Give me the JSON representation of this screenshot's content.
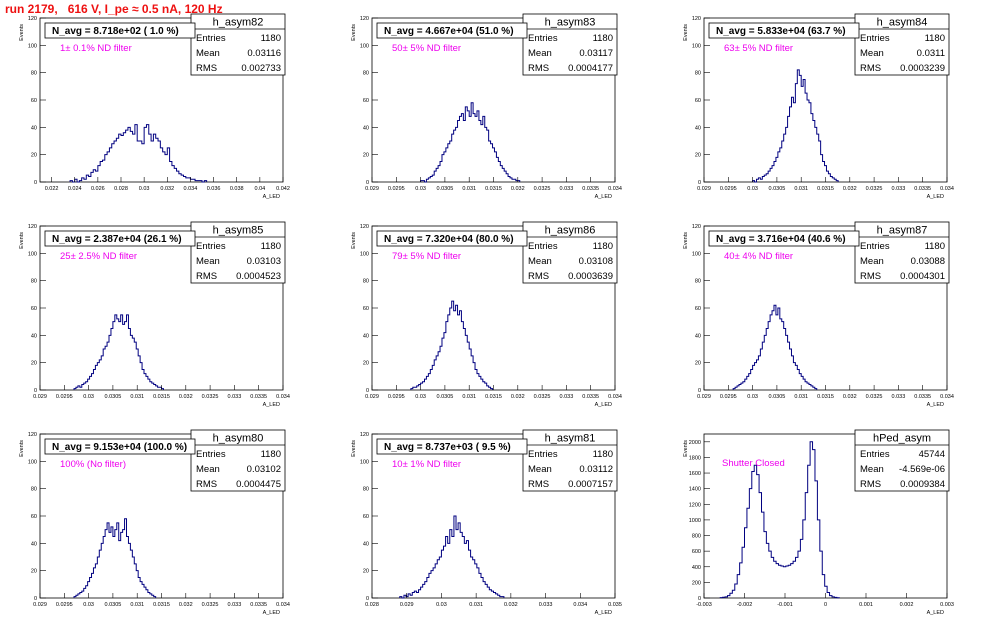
{
  "page": {
    "title": "run 2179,   616 V, I_pe ≈ 0.5 nA, 120 Hz"
  },
  "colors": {
    "title": "#ee1111",
    "annotation": "#ee00ee",
    "histogram": "#000080",
    "axis": "#000000"
  },
  "common": {
    "y_axis_label": "Events",
    "x_axis_label": "A_LED",
    "stats_labels": [
      "Entries",
      "Mean",
      "RMS"
    ]
  },
  "chart_data": [
    {
      "type": "histogram",
      "name": "h_asym82",
      "header": "N_avg = 8.718e+02 ( 1.0 %)",
      "annotation": "1± 0.1% ND filter",
      "stats": {
        "entries": "1180",
        "mean": "0.03116",
        "rms": "0.002733"
      },
      "xlim": [
        0.021,
        0.042
      ],
      "ylim": [
        0,
        120
      ],
      "xticks": [
        {
          "v": 0.022,
          "l": "0.022"
        },
        {
          "v": 0.024,
          "l": "0.024"
        },
        {
          "v": 0.026,
          "l": "0.026"
        },
        {
          "v": 0.028,
          "l": "0.028"
        },
        {
          "v": 0.03,
          "l": "0.03"
        },
        {
          "v": 0.032,
          "l": "0.032"
        },
        {
          "v": 0.034,
          "l": "0.034"
        },
        {
          "v": 0.036,
          "l": "0.036"
        },
        {
          "v": 0.038,
          "l": "0.038"
        },
        {
          "v": 0.04,
          "l": "0.04"
        },
        {
          "v": 0.042,
          "l": "0.042"
        }
      ],
      "yticks": [
        0,
        20,
        40,
        60,
        80,
        100,
        120
      ],
      "bin_start": 0.0236,
      "bin_width": 0.0002,
      "counts": [
        1,
        0,
        2,
        0,
        1,
        3,
        2,
        5,
        4,
        7,
        9,
        8,
        12,
        15,
        16,
        20,
        22,
        25,
        28,
        30,
        32,
        35,
        34,
        36,
        38,
        40,
        37,
        35,
        42,
        30,
        30,
        28,
        40,
        42,
        35,
        30,
        35,
        32,
        30,
        25,
        22,
        20,
        25,
        15,
        12,
        10,
        8,
        6,
        5,
        4,
        3,
        3,
        2,
        2,
        1,
        1,
        1,
        0,
        1
      ]
    },
    {
      "type": "histogram",
      "name": "h_asym83",
      "header": "N_avg = 4.667e+04 (51.0 %)",
      "annotation": "50± 5% ND filter",
      "stats": {
        "entries": "1180",
        "mean": "0.03117",
        "rms": "0.0004177"
      },
      "xlim": [
        0.029,
        0.034
      ],
      "ylim": [
        0,
        120
      ],
      "xticks": [
        {
          "v": 0.029,
          "l": "0.029"
        },
        {
          "v": 0.0295,
          "l": "0.0295"
        },
        {
          "v": 0.03,
          "l": "0.03"
        },
        {
          "v": 0.0305,
          "l": "0.0305"
        },
        {
          "v": 0.031,
          "l": "0.031"
        },
        {
          "v": 0.0315,
          "l": "0.0315"
        },
        {
          "v": 0.032,
          "l": "0.032"
        },
        {
          "v": 0.0325,
          "l": "0.0325"
        },
        {
          "v": 0.033,
          "l": "0.033"
        },
        {
          "v": 0.0335,
          "l": "0.0335"
        },
        {
          "v": 0.034,
          "l": "0.034"
        }
      ],
      "yticks": [
        0,
        20,
        40,
        60,
        80,
        100,
        120
      ],
      "bin_start": 0.03,
      "bin_width": 4e-05,
      "counts": [
        1,
        1,
        0,
        2,
        3,
        4,
        5,
        8,
        10,
        12,
        15,
        20,
        22,
        25,
        28,
        30,
        35,
        38,
        40,
        45,
        48,
        50,
        45,
        55,
        52,
        48,
        58,
        50,
        48,
        52,
        45,
        42,
        48,
        40,
        38,
        30,
        28,
        25,
        22,
        18,
        15,
        12,
        10,
        8,
        6,
        4,
        3,
        2,
        2,
        1,
        1
      ]
    },
    {
      "type": "histogram",
      "name": "h_asym84",
      "header": "N_avg = 5.833e+04 (63.7 %)",
      "annotation": "63± 5% ND filter",
      "stats": {
        "entries": "1180",
        "mean": "0.0311",
        "rms": "0.0003239"
      },
      "xlim": [
        0.029,
        0.034
      ],
      "ylim": [
        0,
        120
      ],
      "xticks": [
        {
          "v": 0.029,
          "l": "0.029"
        },
        {
          "v": 0.0295,
          "l": "0.0295"
        },
        {
          "v": 0.03,
          "l": "0.03"
        },
        {
          "v": 0.0305,
          "l": "0.0305"
        },
        {
          "v": 0.031,
          "l": "0.031"
        },
        {
          "v": 0.0315,
          "l": "0.0315"
        },
        {
          "v": 0.032,
          "l": "0.032"
        },
        {
          "v": 0.0325,
          "l": "0.0325"
        },
        {
          "v": 0.033,
          "l": "0.033"
        },
        {
          "v": 0.0335,
          "l": "0.0335"
        },
        {
          "v": 0.034,
          "l": "0.034"
        }
      ],
      "yticks": [
        0,
        20,
        40,
        60,
        80,
        100,
        120
      ],
      "bin_start": 0.03,
      "bin_width": 4e-05,
      "counts": [
        1,
        0,
        2,
        3,
        2,
        4,
        5,
        6,
        8,
        10,
        12,
        15,
        18,
        22,
        25,
        30,
        35,
        40,
        48,
        55,
        62,
        58,
        72,
        82,
        78,
        70,
        75,
        65,
        60,
        58,
        50,
        45,
        40,
        35,
        30,
        20,
        15,
        12,
        8,
        6,
        4,
        3,
        2,
        1
      ]
    },
    {
      "type": "histogram",
      "name": "h_asym85",
      "header": "N_avg = 2.387e+04 (26.1 %)",
      "annotation": "25± 2.5% ND filter",
      "stats": {
        "entries": "1180",
        "mean": "0.03103",
        "rms": "0.0004523"
      },
      "xlim": [
        0.029,
        0.034
      ],
      "ylim": [
        0,
        120
      ],
      "xticks": [
        {
          "v": 0.029,
          "l": "0.029"
        },
        {
          "v": 0.0295,
          "l": "0.0295"
        },
        {
          "v": 0.03,
          "l": "0.03"
        },
        {
          "v": 0.0305,
          "l": "0.0305"
        },
        {
          "v": 0.031,
          "l": "0.031"
        },
        {
          "v": 0.0315,
          "l": "0.0315"
        },
        {
          "v": 0.032,
          "l": "0.032"
        },
        {
          "v": 0.0325,
          "l": "0.0325"
        },
        {
          "v": 0.033,
          "l": "0.033"
        },
        {
          "v": 0.0335,
          "l": "0.0335"
        },
        {
          "v": 0.034,
          "l": "0.034"
        }
      ],
      "yticks": [
        0,
        20,
        40,
        60,
        80,
        100,
        120
      ],
      "bin_start": 0.0297,
      "bin_width": 4e-05,
      "counts": [
        1,
        2,
        3,
        2,
        4,
        5,
        6,
        8,
        10,
        12,
        15,
        18,
        20,
        22,
        25,
        30,
        32,
        35,
        40,
        45,
        50,
        55,
        52,
        50,
        55,
        48,
        50,
        55,
        45,
        40,
        38,
        35,
        30,
        25,
        20,
        15,
        12,
        10,
        8,
        6,
        5,
        4,
        3,
        2,
        2,
        1
      ]
    },
    {
      "type": "histogram",
      "name": "h_asym86",
      "header": "N_avg = 7.320e+04 (80.0 %)",
      "annotation": "79± 5% ND filter",
      "stats": {
        "entries": "1180",
        "mean": "0.03108",
        "rms": "0.0003639"
      },
      "xlim": [
        0.029,
        0.034
      ],
      "ylim": [
        0,
        120
      ],
      "xticks": [
        {
          "v": 0.029,
          "l": "0.029"
        },
        {
          "v": 0.0295,
          "l": "0.0295"
        },
        {
          "v": 0.03,
          "l": "0.03"
        },
        {
          "v": 0.0305,
          "l": "0.0305"
        },
        {
          "v": 0.031,
          "l": "0.031"
        },
        {
          "v": 0.0315,
          "l": "0.0315"
        },
        {
          "v": 0.032,
          "l": "0.032"
        },
        {
          "v": 0.0325,
          "l": "0.0325"
        },
        {
          "v": 0.033,
          "l": "0.033"
        },
        {
          "v": 0.0335,
          "l": "0.0335"
        },
        {
          "v": 0.034,
          "l": "0.034"
        }
      ],
      "yticks": [
        0,
        20,
        40,
        60,
        80,
        100,
        120
      ],
      "bin_start": 0.0298,
      "bin_width": 4e-05,
      "counts": [
        1,
        2,
        2,
        3,
        4,
        5,
        6,
        8,
        10,
        12,
        15,
        18,
        22,
        25,
        28,
        32,
        38,
        42,
        50,
        55,
        60,
        65,
        58,
        62,
        55,
        58,
        50,
        45,
        40,
        35,
        30,
        25,
        20,
        15,
        12,
        10,
        8,
        6,
        5,
        3,
        2,
        1
      ]
    },
    {
      "type": "histogram",
      "name": "h_asym87",
      "header": "N_avg = 3.716e+04 (40.6 %)",
      "annotation": "40± 4% ND filter",
      "stats": {
        "entries": "1180",
        "mean": "0.03088",
        "rms": "0.0004301"
      },
      "xlim": [
        0.029,
        0.034
      ],
      "ylim": [
        0,
        120
      ],
      "xticks": [
        {
          "v": 0.029,
          "l": "0.029"
        },
        {
          "v": 0.0295,
          "l": "0.0295"
        },
        {
          "v": 0.03,
          "l": "0.03"
        },
        {
          "v": 0.0305,
          "l": "0.0305"
        },
        {
          "v": 0.031,
          "l": "0.031"
        },
        {
          "v": 0.0315,
          "l": "0.0315"
        },
        {
          "v": 0.032,
          "l": "0.032"
        },
        {
          "v": 0.0325,
          "l": "0.0325"
        },
        {
          "v": 0.033,
          "l": "0.033"
        },
        {
          "v": 0.0335,
          "l": "0.0335"
        },
        {
          "v": 0.034,
          "l": "0.034"
        }
      ],
      "yticks": [
        0,
        20,
        40,
        60,
        80,
        100,
        120
      ],
      "bin_start": 0.0296,
      "bin_width": 4e-05,
      "counts": [
        1,
        2,
        3,
        4,
        5,
        6,
        8,
        10,
        12,
        15,
        18,
        20,
        22,
        25,
        30,
        35,
        40,
        45,
        50,
        55,
        58,
        62,
        55,
        60,
        52,
        50,
        45,
        40,
        35,
        30,
        25,
        20,
        18,
        15,
        12,
        10,
        8,
        6,
        5,
        4,
        3,
        2,
        1
      ]
    },
    {
      "type": "histogram",
      "name": "h_asym80",
      "header": "N_avg = 9.153e+04 (100.0 %)",
      "annotation": "100% (No filter)",
      "stats": {
        "entries": "1180",
        "mean": "0.03102",
        "rms": "0.0004475"
      },
      "xlim": [
        0.029,
        0.034
      ],
      "ylim": [
        0,
        120
      ],
      "xticks": [
        {
          "v": 0.029,
          "l": "0.029"
        },
        {
          "v": 0.0295,
          "l": "0.0295"
        },
        {
          "v": 0.03,
          "l": "0.03"
        },
        {
          "v": 0.0305,
          "l": "0.0305"
        },
        {
          "v": 0.031,
          "l": "0.031"
        },
        {
          "v": 0.0315,
          "l": "0.0315"
        },
        {
          "v": 0.032,
          "l": "0.032"
        },
        {
          "v": 0.0325,
          "l": "0.0325"
        },
        {
          "v": 0.033,
          "l": "0.033"
        },
        {
          "v": 0.0335,
          "l": "0.0335"
        },
        {
          "v": 0.034,
          "l": "0.034"
        }
      ],
      "yticks": [
        0,
        20,
        40,
        60,
        80,
        100,
        120
      ],
      "bin_start": 0.0297,
      "bin_width": 4e-05,
      "counts": [
        1,
        2,
        3,
        4,
        5,
        7,
        9,
        12,
        15,
        18,
        22,
        25,
        30,
        35,
        40,
        45,
        50,
        55,
        48,
        52,
        45,
        50,
        55,
        42,
        48,
        50,
        58,
        45,
        40,
        35,
        30,
        25,
        20,
        15,
        12,
        10,
        8,
        6,
        4,
        3,
        2,
        1
      ]
    },
    {
      "type": "histogram",
      "name": "h_asym81",
      "header": "N_avg = 8.737e+03 ( 9.5 %)",
      "annotation": "10± 1% ND filter",
      "stats": {
        "entries": "1180",
        "mean": "0.03112",
        "rms": "0.0007157"
      },
      "xlim": [
        0.028,
        0.035
      ],
      "ylim": [
        0,
        120
      ],
      "xticks": [
        {
          "v": 0.028,
          "l": "0.028"
        },
        {
          "v": 0.029,
          "l": "0.029"
        },
        {
          "v": 0.03,
          "l": "0.03"
        },
        {
          "v": 0.031,
          "l": "0.031"
        },
        {
          "v": 0.032,
          "l": "0.032"
        },
        {
          "v": 0.033,
          "l": "0.033"
        },
        {
          "v": 0.034,
          "l": "0.034"
        },
        {
          "v": 0.035,
          "l": "0.035"
        }
      ],
      "yticks": [
        0,
        20,
        40,
        60,
        80,
        100,
        120
      ],
      "bin_start": 0.0288,
      "bin_width": 6e-05,
      "counts": [
        1,
        0,
        2,
        1,
        3,
        2,
        4,
        5,
        4,
        6,
        8,
        10,
        12,
        15,
        18,
        20,
        22,
        25,
        28,
        30,
        35,
        38,
        45,
        40,
        50,
        45,
        60,
        50,
        55,
        48,
        45,
        40,
        42,
        35,
        30,
        28,
        25,
        22,
        18,
        15,
        12,
        10,
        8,
        6,
        5,
        4,
        3,
        2,
        1,
        1
      ]
    },
    {
      "type": "histogram",
      "name": "hPed_asym",
      "header": "",
      "annotation": "Shutter Closed",
      "stats": {
        "entries": "45744",
        "mean": "-4.569e-06",
        "rms": "0.0009384"
      },
      "xlim": [
        -0.003,
        0.003
      ],
      "ylim": [
        0,
        2100
      ],
      "xticks": [
        {
          "v": -0.003,
          "l": "-0.003"
        },
        {
          "v": -0.002,
          "l": "-0.002"
        },
        {
          "v": -0.001,
          "l": "-0.001"
        },
        {
          "v": 0,
          "l": "0"
        },
        {
          "v": 0.001,
          "l": "0.001"
        },
        {
          "v": 0.002,
          "l": "0.002"
        },
        {
          "v": 0.003,
          "l": "0.003"
        }
      ],
      "yticks": [
        0,
        200,
        400,
        600,
        800,
        1000,
        1200,
        1400,
        1600,
        1800,
        2000
      ],
      "bin_start": -0.0026,
      "bin_width": 6e-05,
      "counts": [
        5,
        10,
        15,
        30,
        60,
        100,
        180,
        300,
        450,
        650,
        900,
        1150,
        1400,
        1620,
        1700,
        1580,
        1350,
        1100,
        850,
        700,
        600,
        520,
        470,
        440,
        420,
        410,
        400,
        410,
        420,
        440,
        470,
        520,
        600,
        750,
        1000,
        1350,
        1700,
        2000,
        1900,
        1500,
        1000,
        600,
        300,
        150,
        70,
        30,
        15,
        8,
        4
      ]
    }
  ]
}
